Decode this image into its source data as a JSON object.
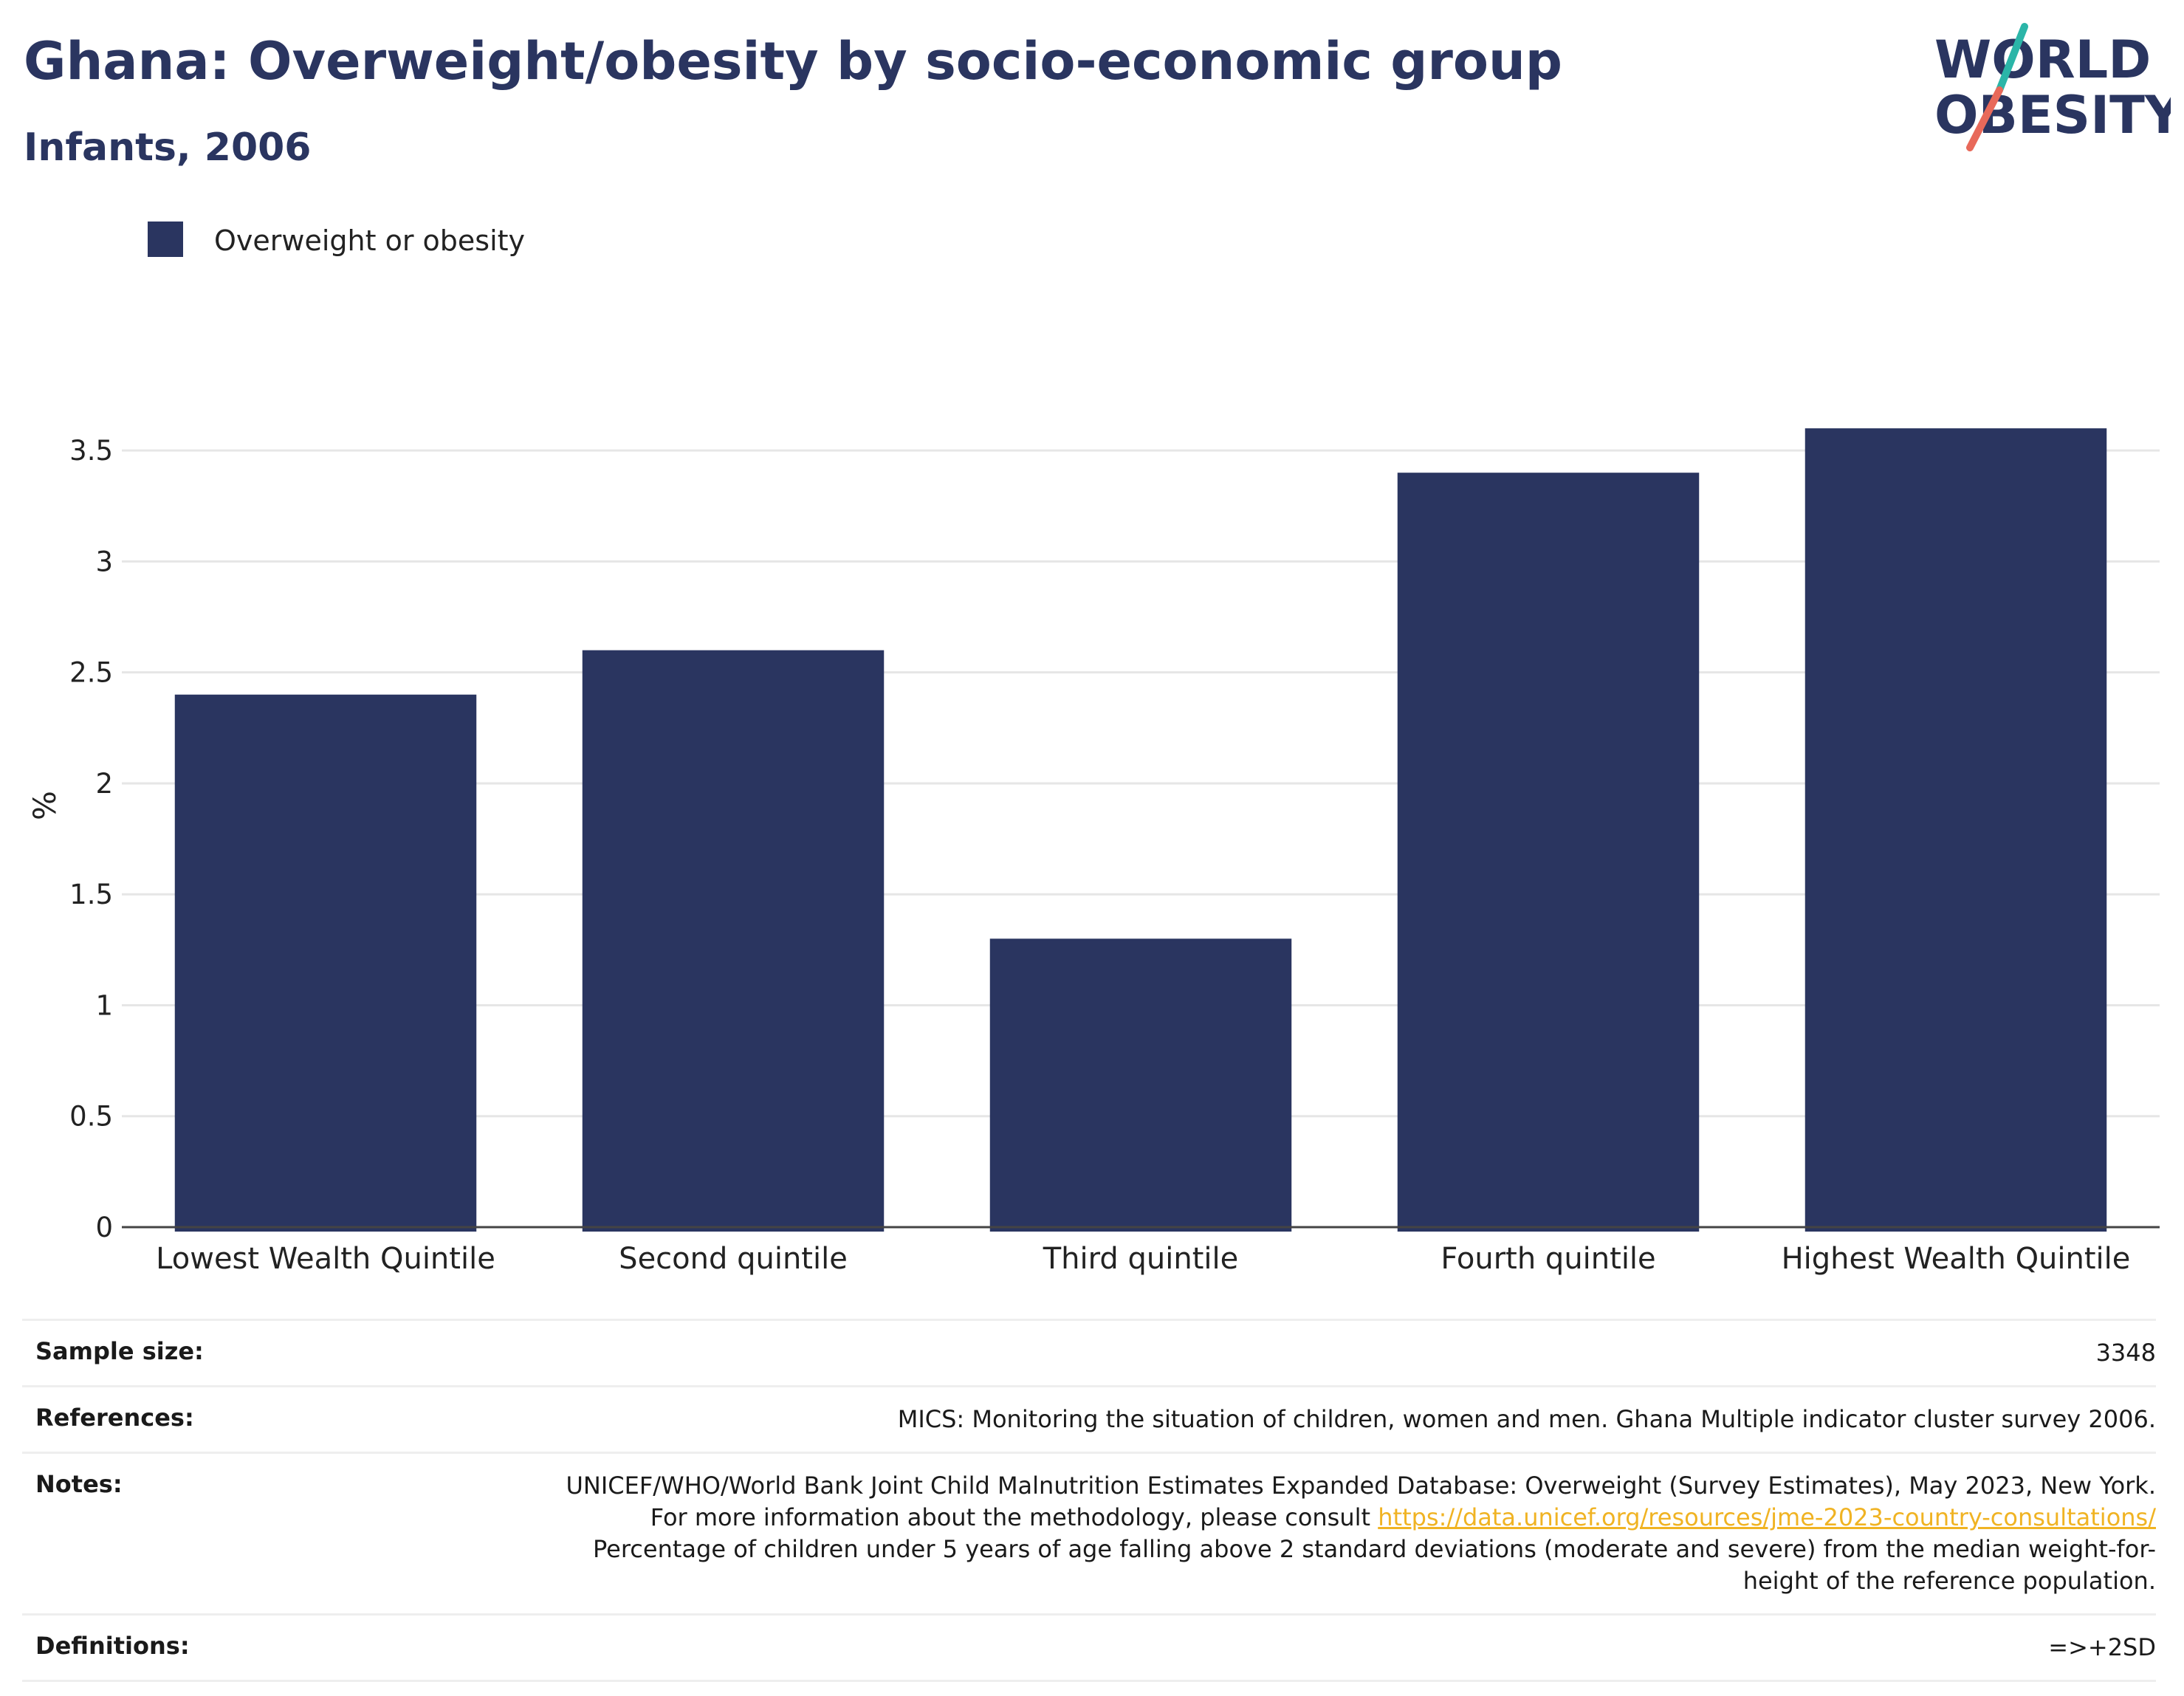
{
  "header": {
    "title": "Ghana: Overweight/obesity by socio-economic group",
    "subtitle": "Infants, 2006"
  },
  "logo": {
    "line1": "WORLD",
    "line2": "OBESITY",
    "colors": {
      "text": "#2a3560",
      "slash_teal": "#2bb5a8",
      "slash_red": "#e8695a"
    }
  },
  "legend": {
    "items": [
      {
        "label": "Overweight or obesity",
        "color": "#2a3560"
      }
    ]
  },
  "chart_data": {
    "type": "bar",
    "title": "Ghana: Overweight/obesity by socio-economic group",
    "subtitle": "Infants, 2006",
    "ylabel": "%",
    "xlabel": "",
    "categories": [
      "Lowest Wealth Quintile",
      "Second quintile",
      "Third quintile",
      "Fourth quintile",
      "Highest Wealth Quintile"
    ],
    "series": [
      {
        "name": "Overweight or obesity",
        "values": [
          2.4,
          2.6,
          1.3,
          3.4,
          3.6
        ],
        "color": "#2a3560"
      }
    ],
    "yticks": [
      0,
      0.5,
      1,
      1.5,
      2,
      2.5,
      3,
      3.5
    ],
    "ytick_labels": [
      "0",
      "0.5",
      "1",
      "1.5",
      "2",
      "2.5",
      "3",
      "3.5"
    ],
    "ylim": [
      0,
      3.8
    ],
    "grid": true,
    "legend_position": "top-left"
  },
  "info": {
    "sample_size": {
      "label": "Sample size:",
      "value": "3348"
    },
    "references": {
      "label": "References:",
      "value": "MICS: Monitoring the situation of children, women and men. Ghana Multiple indicator cluster survey 2006."
    },
    "notes": {
      "label": "Notes:",
      "text_before": "UNICEF/WHO/World Bank Joint Child Malnutrition Estimates Expanded Database: Overweight (Survey Estimates), May 2023, New York. For more information about the methodology, please consult ",
      "link": "https://data.unicef.org/resources/jme-2023-country-consultations/",
      "text_after": " Percentage of children under 5 years of age falling above 2 standard deviations (moderate and severe) from the median weight-for-height of the reference population."
    },
    "definitions": {
      "label": "Definitions:",
      "value": "=>+2SD"
    }
  }
}
